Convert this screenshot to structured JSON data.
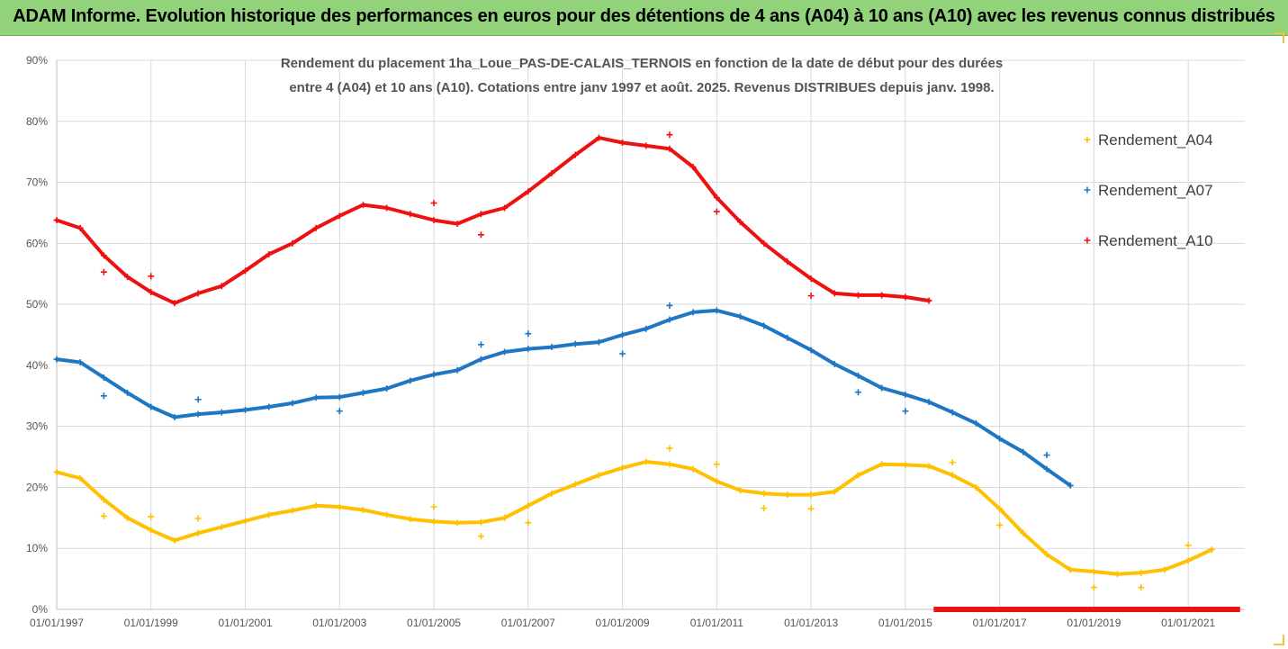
{
  "header": {
    "title": "ADAM Informe. Evolution historique des performances en euros pour des détentions de 4 ans (A04) à 10 ans (A10) avec les revenus connus distribués"
  },
  "colors": {
    "banner": "#92d27a",
    "A04": "#ffc000",
    "A07": "#1f77c4",
    "A10": "#ee1111",
    "grid": "#d9d9d9"
  },
  "chart_data": {
    "type": "scatter",
    "title_lines": [
      "Rendement du placement 1ha_Loue_PAS-DE-CALAIS_TERNOIS en fonction de la date de début pour des durées",
      "entre 4 (A04) et 10 ans (A10). Cotations entre janv 1997 et août. 2025. Revenus DISTRIBUES depuis janv. 1998."
    ],
    "xlabel": "",
    "ylabel": "",
    "x_ticks": [
      "01/01/1997",
      "01/01/1999",
      "01/01/2001",
      "01/01/2003",
      "01/01/2005",
      "01/01/2007",
      "01/01/2009",
      "01/01/2011",
      "01/01/2013",
      "01/01/2015",
      "01/01/2017",
      "01/01/2019",
      "01/01/2021"
    ],
    "y_ticks": [
      "0%",
      "10%",
      "20%",
      "30%",
      "40%",
      "50%",
      "60%",
      "70%",
      "80%",
      "90%"
    ],
    "xlim": [
      1997.0,
      2022.2
    ],
    "ylim": [
      0,
      90
    ],
    "grid": true,
    "legend_position": "right",
    "series": [
      {
        "name": "Rendement_A04",
        "key": "A04",
        "x": [
          1997.0,
          1997.5,
          1998.0,
          1998.5,
          1999.0,
          1999.5,
          2000.0,
          2000.5,
          2001.0,
          2001.5,
          2002.0,
          2002.5,
          2003.0,
          2003.5,
          2004.0,
          2004.5,
          2005.0,
          2005.5,
          2006.0,
          2006.5,
          2007.0,
          2007.5,
          2008.0,
          2008.5,
          2009.0,
          2009.5,
          2010.0,
          2010.5,
          2011.0,
          2011.5,
          2012.0,
          2012.5,
          2013.0,
          2013.5,
          2014.0,
          2014.5,
          2015.0,
          2015.5,
          2016.0,
          2016.5,
          2017.0,
          2017.5,
          2018.0,
          2018.5,
          2019.0,
          2019.5,
          2020.0,
          2020.5,
          2021.0,
          2021.5
        ],
        "y": [
          22.5,
          21.5,
          18.0,
          15.0,
          13.0,
          11.3,
          12.5,
          13.5,
          14.5,
          15.5,
          16.2,
          17.0,
          16.8,
          16.3,
          15.5,
          14.8,
          14.4,
          14.2,
          14.3,
          15.0,
          17.0,
          19.0,
          20.5,
          22.0,
          23.2,
          24.2,
          23.8,
          23.0,
          21.0,
          19.5,
          19.0,
          18.8,
          18.8,
          19.3,
          22.0,
          23.8,
          23.7,
          23.5,
          22.0,
          20.0,
          16.5,
          12.5,
          9.0,
          6.5,
          6.2,
          5.8,
          6.0,
          6.5,
          8.0,
          9.8
        ],
        "outliers": [
          [
            1998.0,
            15.3
          ],
          [
            1999.0,
            15.2
          ],
          [
            2000.0,
            14.9
          ],
          [
            2005.0,
            16.8
          ],
          [
            2006.0,
            12.0
          ],
          [
            2007.0,
            14.2
          ],
          [
            2010.0,
            26.4
          ],
          [
            2011.0,
            23.8
          ],
          [
            2012.0,
            16.6
          ],
          [
            2013.0,
            16.5
          ],
          [
            2016.0,
            24.1
          ],
          [
            2017.0,
            13.8
          ],
          [
            2019.0,
            3.6
          ],
          [
            2020.0,
            3.6
          ],
          [
            2021.0,
            10.5
          ]
        ]
      },
      {
        "name": "Rendement_A07",
        "key": "A07",
        "x": [
          1997.0,
          1997.5,
          1998.0,
          1998.5,
          1999.0,
          1999.5,
          2000.0,
          2000.5,
          2001.0,
          2001.5,
          2002.0,
          2002.5,
          2003.0,
          2003.5,
          2004.0,
          2004.5,
          2005.0,
          2005.5,
          2006.0,
          2006.5,
          2007.0,
          2007.5,
          2008.0,
          2008.5,
          2009.0,
          2009.5,
          2010.0,
          2010.5,
          2011.0,
          2011.5,
          2012.0,
          2012.5,
          2013.0,
          2013.5,
          2014.0,
          2014.5,
          2015.0,
          2015.5,
          2016.0,
          2016.5,
          2017.0,
          2017.5,
          2018.0,
          2018.5
        ],
        "y": [
          41.0,
          40.5,
          38.0,
          35.5,
          33.2,
          31.5,
          32.0,
          32.3,
          32.7,
          33.2,
          33.8,
          34.7,
          34.8,
          35.5,
          36.2,
          37.5,
          38.5,
          39.2,
          41.0,
          42.2,
          42.7,
          43.0,
          43.5,
          43.8,
          45.0,
          46.0,
          47.5,
          48.7,
          49.0,
          48.0,
          46.5,
          44.5,
          42.5,
          40.2,
          38.3,
          36.3,
          35.2,
          34.0,
          32.3,
          30.5,
          28.0,
          25.8,
          23.0,
          20.3
        ],
        "outliers": [
          [
            1998.0,
            35.0
          ],
          [
            2000.0,
            34.4
          ],
          [
            2003.0,
            32.5
          ],
          [
            2006.0,
            43.4
          ],
          [
            2007.0,
            45.2
          ],
          [
            2009.0,
            41.9
          ],
          [
            2010.0,
            49.8
          ],
          [
            2014.0,
            35.6
          ],
          [
            2015.0,
            32.5
          ],
          [
            2018.0,
            25.3
          ]
        ]
      },
      {
        "name": "Rendement_A10",
        "key": "A10",
        "x": [
          1997.0,
          1997.5,
          1998.0,
          1998.5,
          1999.0,
          1999.5,
          2000.0,
          2000.5,
          2001.0,
          2001.5,
          2002.0,
          2002.5,
          2003.0,
          2003.5,
          2004.0,
          2004.5,
          2005.0,
          2005.5,
          2006.0,
          2006.5,
          2007.0,
          2007.5,
          2008.0,
          2008.5,
          2009.0,
          2009.5,
          2010.0,
          2010.5,
          2011.0,
          2011.5,
          2012.0,
          2012.5,
          2013.0,
          2013.5,
          2014.0,
          2014.5,
          2015.0,
          2015.5
        ],
        "y": [
          63.8,
          62.5,
          58.0,
          54.5,
          52.0,
          50.2,
          51.8,
          53.0,
          55.5,
          58.2,
          60.0,
          62.5,
          64.5,
          66.3,
          65.8,
          64.8,
          63.8,
          63.2,
          64.8,
          65.8,
          68.5,
          71.5,
          74.5,
          77.3,
          76.5,
          76.0,
          75.5,
          72.5,
          67.5,
          63.5,
          60.0,
          57.0,
          54.2,
          51.8,
          51.5,
          51.5,
          51.2,
          50.6
        ],
        "outliers": [
          [
            1998.0,
            55.3
          ],
          [
            1999.0,
            54.6
          ],
          [
            2005.0,
            66.6
          ],
          [
            2006.0,
            61.4
          ],
          [
            2010.0,
            77.8
          ],
          [
            2011.0,
            65.2
          ],
          [
            2013.0,
            51.4
          ]
        ],
        "zero_segment": [
          2015.6,
          2022.1
        ]
      }
    ]
  }
}
